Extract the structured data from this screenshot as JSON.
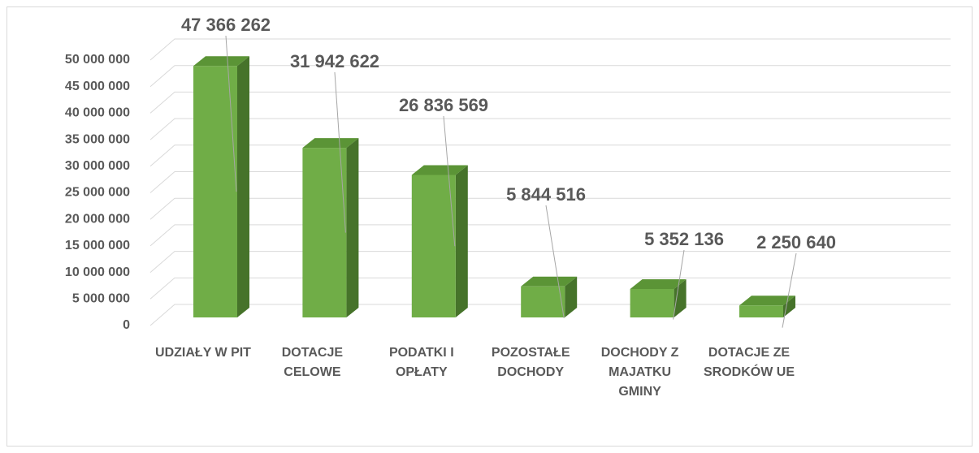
{
  "chart_data": {
    "type": "bar3d",
    "categories": [
      "UDZIAŁY W PIT",
      "DOTACJE CELOWE",
      "PODATKI I OPŁATY",
      "POZOSTAŁE DOCHODY",
      "DOCHODY Z MAJATKU GMINY",
      "DOTACJE ZE SRODKÓW UE"
    ],
    "values": [
      47366262,
      31942622,
      26836569,
      5844516,
      5352136,
      2250640
    ],
    "value_labels": [
      "47 366 262",
      "31 942 622",
      "26 836 569",
      "5 844 516",
      "5 352 136",
      "2 250 640"
    ],
    "color": "#70ad47",
    "ylim": [
      0,
      50000000
    ],
    "yticks": [
      0,
      {
        "value": 5000000,
        "label": "5 000 000"
      },
      {
        "value": 10000000,
        "label": "10 000 000"
      },
      {
        "value": 15000000,
        "label": "15 000 000"
      },
      {
        "value": 20000000,
        "label": "20 000 000"
      },
      {
        "value": 25000000,
        "label": "25 000 000"
      },
      {
        "value": 30000000,
        "label": "30 000 000"
      },
      {
        "value": 35000000,
        "label": "35 000 000"
      },
      {
        "value": 40000000,
        "label": "40 000 000"
      },
      {
        "value": 45000000,
        "label": "45 000 000"
      },
      {
        "value": 50000000,
        "label": "50 000 000"
      }
    ],
    "grid": true
  }
}
